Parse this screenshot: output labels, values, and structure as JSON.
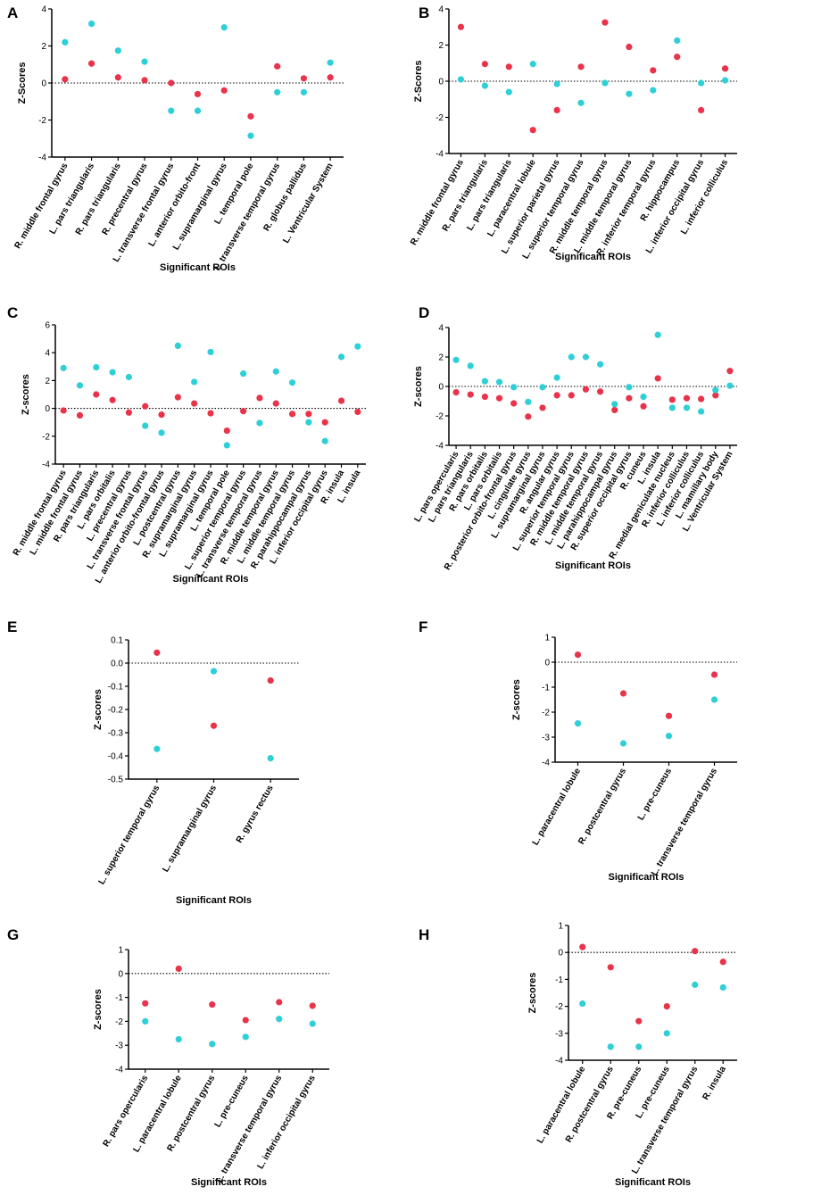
{
  "colors": {
    "red": "#e8334a",
    "cyan": "#2ecfd6",
    "axis": "#000000"
  },
  "chart_data": [
    {
      "letter": "A",
      "type": "scatter",
      "ylabel": "Z-Scores",
      "xlabel": "Significant ROIs",
      "ylim": [
        -4,
        4
      ],
      "yticks": [
        -4,
        -2,
        0,
        2,
        4
      ],
      "ytick_labels": [
        "-4",
        "-2",
        "0",
        "2",
        "4"
      ],
      "categories": [
        "R. middle frontal gyrus",
        "L. pars triangularis",
        "R. pars triangularis",
        "R. precentral gyrus",
        "L. transverse frontal gyrus",
        "L. anterior orbito-front",
        "L. supramarginal gyrus",
        "L. temporal pole",
        "L. transverse temporal gyrus",
        "R. globus pallidus",
        "L. Ventricular System"
      ],
      "series": [
        {
          "name": "red",
          "values": [
            0.2,
            1.05,
            0.3,
            0.15,
            0.0,
            -0.6,
            -0.4,
            -1.8,
            0.9,
            0.25,
            0.3
          ]
        },
        {
          "name": "cyan",
          "values": [
            2.2,
            3.2,
            1.75,
            1.15,
            -1.5,
            -1.5,
            3.0,
            -2.85,
            -0.5,
            -0.5,
            1.1
          ]
        }
      ]
    },
    {
      "letter": "B",
      "type": "scatter",
      "ylabel": "Z-Scores",
      "xlabel": "Significant ROIs",
      "ylim": [
        -4,
        4
      ],
      "yticks": [
        -4,
        -2,
        0,
        2,
        4
      ],
      "ytick_labels": [
        "-4",
        "-2",
        "0",
        "2",
        "4"
      ],
      "categories": [
        "R. middle frontal gyrus",
        "R. pars triangularis",
        "L. pars triangularis",
        "L. paracentral lobule",
        "L. superior parietal gyrus",
        "L. superior temporal gyrus",
        "R. middle temporal gyrus",
        "L. middle temporal gyrus",
        "R. inferior temporal gyrus",
        "R. hippocampus",
        "L. inferior occipital gyrus",
        "L. inferior colliculus"
      ],
      "series": [
        {
          "name": "red",
          "values": [
            3.0,
            0.95,
            0.8,
            -2.7,
            -1.6,
            0.8,
            3.25,
            1.9,
            0.6,
            1.35,
            -1.6,
            0.7
          ]
        },
        {
          "name": "cyan",
          "values": [
            0.1,
            -0.25,
            -0.6,
            0.95,
            -0.15,
            -1.2,
            -0.1,
            -0.7,
            -0.5,
            2.25,
            -0.1,
            0.05
          ]
        }
      ]
    },
    {
      "letter": "C",
      "type": "scatter",
      "ylabel": "Z-scores",
      "xlabel": "Significant ROIs",
      "ylim": [
        -4,
        6
      ],
      "yticks": [
        -4,
        -2,
        0,
        2,
        4,
        6
      ],
      "ytick_labels": [
        "-4",
        "-2",
        "0",
        "2",
        "4",
        "6"
      ],
      "categories": [
        "R. middle frontal gyrus",
        "L. middle frontal gyrus",
        "R. pars triangularis",
        "L. pars orbitalis",
        "L. precentral gyrus",
        "L. transverse frontal gyrus",
        "L. anterior orbito-frontal gyrus",
        "L. postcentral gyrus",
        "R. supramarginal gyrus",
        "L. supramarginal gyrus",
        "L. temporal pole",
        "L. superior temporal gyrus",
        "L. transverse temporal gyrus",
        "R. middle temporal gyrus",
        "L. middle temporal gyrus",
        "R. parahippocampal gyrus",
        "L. inferior occipital gyrus",
        "R. insula",
        "L. insula"
      ],
      "series": [
        {
          "name": "red",
          "values": [
            -0.15,
            -0.5,
            1.0,
            0.6,
            -0.3,
            0.15,
            -0.45,
            0.8,
            0.35,
            -0.35,
            -1.6,
            -0.2,
            0.75,
            0.35,
            -0.4,
            -0.4,
            -1.0,
            0.55,
            -0.25
          ]
        },
        {
          "name": "cyan",
          "values": [
            2.9,
            1.65,
            2.95,
            2.6,
            2.25,
            -1.25,
            -1.75,
            4.5,
            1.9,
            4.05,
            -2.65,
            2.5,
            -1.05,
            2.65,
            1.85,
            -1.0,
            -2.35,
            3.7,
            4.45
          ]
        }
      ]
    },
    {
      "letter": "D",
      "type": "scatter",
      "ylabel": "Z-scores",
      "xlabel": "Significant ROIs",
      "ylim": [
        -4,
        4
      ],
      "yticks": [
        -4,
        -2,
        0,
        2,
        4
      ],
      "ytick_labels": [
        "-4",
        "-2",
        "0",
        "2",
        "4"
      ],
      "categories": [
        "L. pars opercularis",
        "L. pars triangularis",
        "R. pars orbitalis",
        "L. pars orbitalis",
        "R. posterior orbito-frontal gyrus",
        "L. cingulate gyrus",
        "L. supramarginal gyrus",
        "R. angular gyrus",
        "L. superior temporal gyrus",
        "R. middle temporal gyrus",
        "L. middle temporal gyrus",
        "L. parahippocampal gyrus",
        "R. superior occipital gyrus",
        "R. cuneus",
        "L. insula",
        "R. medial geniculate nucleus",
        "R. inferior colliculus",
        "L. inferior colliculus",
        "L. mamillary body",
        "L. Ventricular System"
      ],
      "series": [
        {
          "name": "red",
          "values": [
            -0.4,
            -0.55,
            -0.7,
            -0.8,
            -1.15,
            -2.05,
            -1.45,
            -0.6,
            -0.6,
            -0.2,
            -0.35,
            -1.6,
            -0.8,
            -1.35,
            0.55,
            -0.9,
            -0.8,
            -0.85,
            -0.6,
            1.05
          ]
        },
        {
          "name": "cyan",
          "values": [
            1.8,
            1.4,
            0.35,
            0.3,
            -0.05,
            -1.05,
            -0.05,
            0.6,
            2.0,
            2.0,
            1.5,
            -1.2,
            -0.05,
            -0.7,
            3.5,
            -1.45,
            -1.45,
            -1.7,
            -0.25,
            0.05
          ]
        }
      ]
    },
    {
      "letter": "E",
      "type": "scatter",
      "ylabel": "Z-scores",
      "xlabel": "Significant ROIs",
      "ylim": [
        -0.5,
        0.1
      ],
      "yticks": [
        -0.5,
        -0.4,
        -0.3,
        -0.2,
        -0.1,
        0.0,
        0.1
      ],
      "ytick_labels": [
        "-0.5",
        "-0.4",
        "-0.3",
        "-0.2",
        "-0.1",
        "0.0",
        "0.1"
      ],
      "categories": [
        "L. superior temporal gyrus",
        "L. supramarginal gyrus",
        "R. gyrus rectus"
      ],
      "series": [
        {
          "name": "red",
          "values": [
            0.045,
            -0.27,
            -0.075
          ]
        },
        {
          "name": "cyan",
          "values": [
            -0.37,
            -0.035,
            -0.41
          ]
        }
      ]
    },
    {
      "letter": "F",
      "type": "scatter",
      "ylabel": "Z-scores",
      "xlabel": "Significant ROIs",
      "ylim": [
        -4,
        1
      ],
      "yticks": [
        -4,
        -3,
        -2,
        -1,
        0,
        1
      ],
      "ytick_labels": [
        "-4",
        "-3",
        "-2",
        "-1",
        "0",
        "1"
      ],
      "categories": [
        "L. paracentral lobule",
        "R. postcentral gyrus",
        "L. pre-cuneus",
        "L. transverse temporal gyrus"
      ],
      "series": [
        {
          "name": "red",
          "values": [
            0.3,
            -1.25,
            -2.15,
            -0.5
          ]
        },
        {
          "name": "cyan",
          "values": [
            -2.45,
            -3.25,
            -2.95,
            -1.5
          ]
        }
      ]
    },
    {
      "letter": "G",
      "type": "scatter",
      "ylabel": "Z-scores",
      "xlabel": "Significant ROIs",
      "ylim": [
        -4,
        1
      ],
      "yticks": [
        -4,
        -3,
        -2,
        -1,
        0,
        1
      ],
      "ytick_labels": [
        "-4",
        "-3",
        "-2",
        "-1",
        "0",
        "1"
      ],
      "categories": [
        "R. pars opercularis",
        "L. paracentral lobule",
        "R. postcentral gyrus",
        "L. pre-cuneus",
        "L. transverse temporal gyrus",
        "L. inferior occipital gyrus"
      ],
      "series": [
        {
          "name": "red",
          "values": [
            -1.25,
            0.2,
            -1.3,
            -1.95,
            -1.2,
            -1.35
          ]
        },
        {
          "name": "cyan",
          "values": [
            -2.0,
            -2.75,
            -2.95,
            -2.65,
            -1.9,
            -2.1
          ]
        }
      ]
    },
    {
      "letter": "H",
      "type": "scatter",
      "ylabel": "Z-scores",
      "xlabel": "Significant ROIs",
      "ylim": [
        -4,
        1
      ],
      "yticks": [
        -4,
        -3,
        -2,
        -1,
        0,
        1
      ],
      "ytick_labels": [
        "-4",
        "-3",
        "-2",
        "-1",
        "0",
        "1"
      ],
      "categories": [
        "L. paracentral lobule",
        "R. postcentral gyrus",
        "R. pre-cuneus",
        "L. pre-cuneus",
        "L. transverse temporal gyrus",
        "R. insula"
      ],
      "series": [
        {
          "name": "red",
          "values": [
            0.2,
            -0.55,
            -2.55,
            -2.0,
            0.05,
            -0.35
          ]
        },
        {
          "name": "cyan",
          "values": [
            -1.9,
            -3.5,
            -3.5,
            -3.0,
            -1.2,
            -1.3
          ]
        }
      ]
    }
  ]
}
